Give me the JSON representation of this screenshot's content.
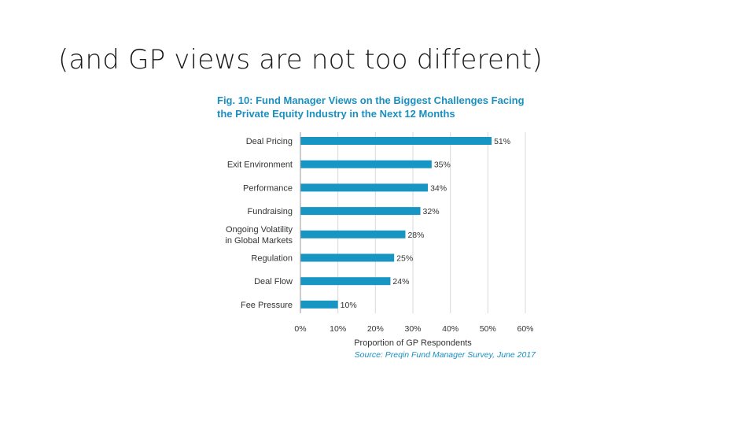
{
  "slide": {
    "title": "(and GP views are not too different)"
  },
  "chart_data": {
    "type": "bar",
    "orientation": "horizontal",
    "title_lines": [
      "Fig. 10: Fund Manager Views on the Biggest Challenges Facing",
      "the Private Equity Industry in the Next 12 Months"
    ],
    "categories": [
      [
        "Deal Pricing"
      ],
      [
        "Exit Environment"
      ],
      [
        "Performance"
      ],
      [
        "Fundraising"
      ],
      [
        "Ongoing Volatility",
        "in Global Markets"
      ],
      [
        "Regulation"
      ],
      [
        "Deal Flow"
      ],
      [
        "Fee Pressure"
      ]
    ],
    "values": [
      51,
      35,
      34,
      32,
      28,
      25,
      24,
      10
    ],
    "value_labels": [
      "51%",
      "35%",
      "34%",
      "32%",
      "28%",
      "25%",
      "24%",
      "10%"
    ],
    "xlim": [
      0,
      60
    ],
    "x_ticks": [
      0,
      10,
      20,
      30,
      40,
      50,
      60
    ],
    "x_tick_labels": [
      "0%",
      "10%",
      "20%",
      "30%",
      "40%",
      "50%",
      "60%"
    ],
    "xlabel": "Proportion of GP Respondents",
    "source": "Source: Preqin Fund Manager Survey, June 2017",
    "grid": "vertical",
    "colors": {
      "bar": "#1796c4",
      "title": "#1b8fbf",
      "source": "#1b8fbf",
      "grid": "#d9d9d9",
      "text": "#333333"
    }
  }
}
